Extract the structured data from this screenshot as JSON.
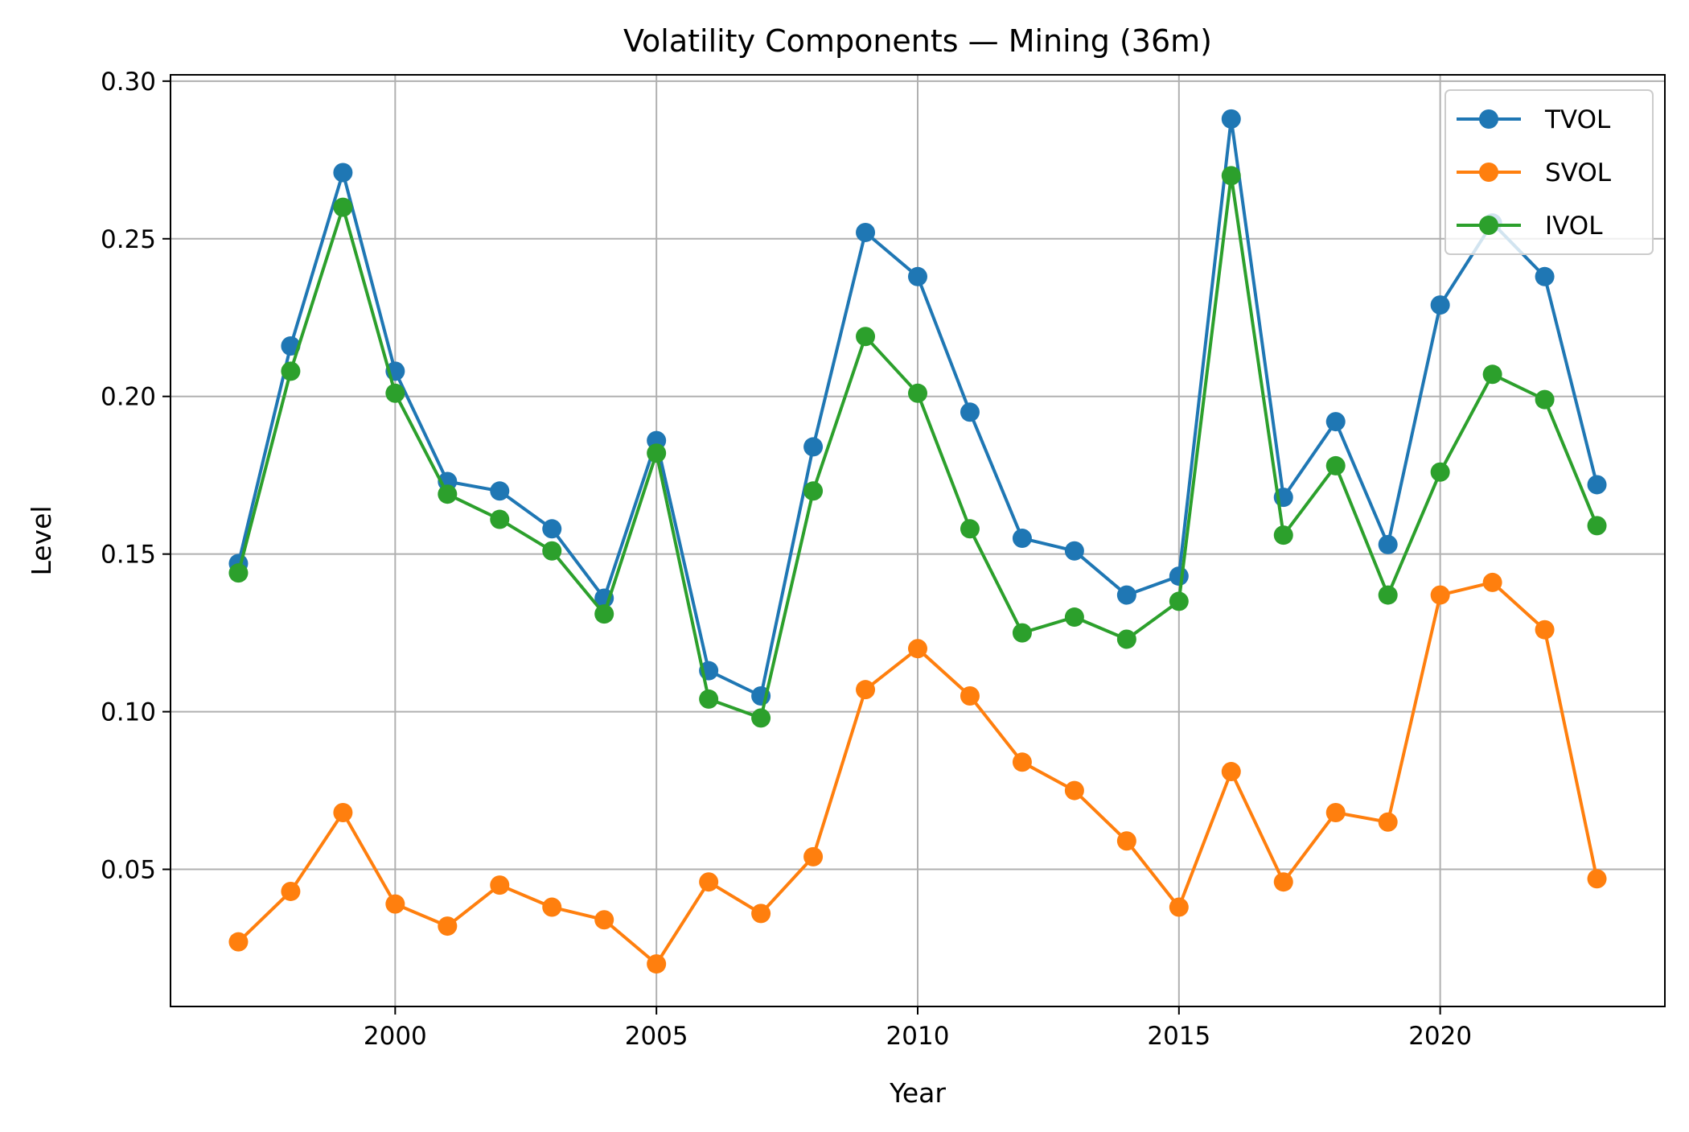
{
  "chart_data": {
    "type": "line",
    "title": "Volatility Components — Mining (36m)",
    "xlabel": "Year",
    "ylabel": "Level",
    "xlim": [
      1995.7,
      2024.3
    ],
    "ylim": [
      0.0065,
      0.302
    ],
    "x_ticks": [
      2000,
      2005,
      2010,
      2015,
      2020
    ],
    "y_ticks": [
      0.05,
      0.1,
      0.15,
      0.2,
      0.25,
      0.3
    ],
    "x_tick_labels": [
      "2000",
      "2005",
      "2010",
      "2015",
      "2020"
    ],
    "y_tick_labels": [
      "0.05",
      "0.10",
      "0.15",
      "0.20",
      "0.25",
      "0.30"
    ],
    "grid": true,
    "legend_position": "top-right",
    "x": [
      1997,
      1998,
      1999,
      2000,
      2001,
      2002,
      2003,
      2004,
      2005,
      2006,
      2007,
      2008,
      2009,
      2010,
      2011,
      2012,
      2013,
      2014,
      2015,
      2016,
      2017,
      2018,
      2019,
      2020,
      2021,
      2022,
      2023
    ],
    "series": [
      {
        "name": "TVOL",
        "color": "#1f77b4",
        "values": [
          0.147,
          0.216,
          0.271,
          0.208,
          0.173,
          0.17,
          0.158,
          0.136,
          0.186,
          0.113,
          0.105,
          0.184,
          0.252,
          0.238,
          0.195,
          0.155,
          0.151,
          0.137,
          0.143,
          0.288,
          0.168,
          0.192,
          0.153,
          0.229,
          0.255,
          0.238,
          0.172
        ]
      },
      {
        "name": "SVOL",
        "color": "#ff7f0e",
        "values": [
          0.027,
          0.043,
          0.068,
          0.039,
          0.032,
          0.045,
          0.038,
          0.034,
          0.02,
          0.046,
          0.036,
          0.054,
          0.107,
          0.12,
          0.105,
          0.084,
          0.075,
          0.059,
          0.038,
          0.081,
          0.046,
          0.068,
          0.065,
          0.137,
          0.141,
          0.126,
          0.047
        ]
      },
      {
        "name": "IVOL",
        "color": "#2ca02c",
        "values": [
          0.144,
          0.208,
          0.26,
          0.201,
          0.169,
          0.161,
          0.151,
          0.131,
          0.182,
          0.104,
          0.098,
          0.17,
          0.219,
          0.201,
          0.158,
          0.125,
          0.13,
          0.123,
          0.135,
          0.27,
          0.156,
          0.178,
          0.137,
          0.176,
          0.207,
          0.199,
          0.159
        ]
      }
    ]
  }
}
